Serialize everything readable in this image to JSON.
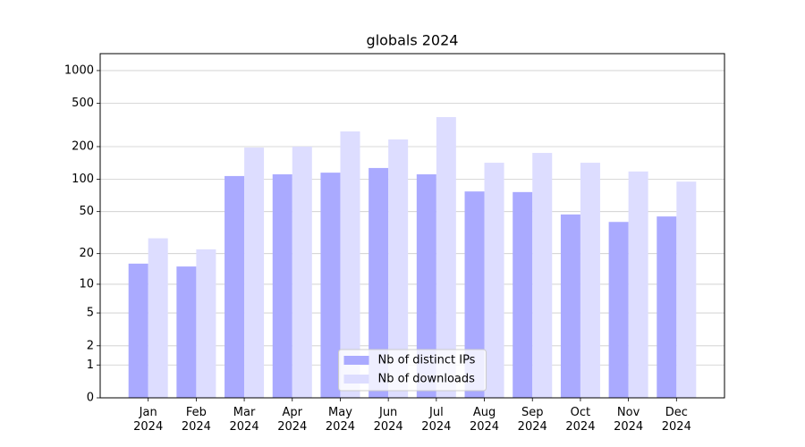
{
  "chart_data": {
    "type": "bar",
    "title": "globals 2024",
    "categories": [
      "Jan\n2024",
      "Feb\n2024",
      "Mar\n2024",
      "Apr\n2024",
      "May\n2024",
      "Jun\n2024",
      "Jul\n2024",
      "Aug\n2024",
      "Sep\n2024",
      "Oct\n2024",
      "Nov\n2024",
      "Dec\n2024"
    ],
    "series": [
      {
        "name": "Nb of distinct IPs",
        "color": "#aaaaff",
        "values": [
          16,
          15,
          107,
          111,
          115,
          127,
          111,
          77,
          76,
          47,
          40,
          45
        ]
      },
      {
        "name": "Nb of downloads",
        "color": "#ddddff",
        "values": [
          28,
          22,
          196,
          200,
          276,
          233,
          374,
          142,
          175,
          142,
          118,
          95
        ]
      }
    ],
    "yscale": "log1p",
    "ylim": [
      0,
      1430
    ],
    "yticks": [
      0,
      1,
      2,
      5,
      10,
      20,
      50,
      100,
      200,
      500,
      1000
    ],
    "grid": true,
    "legend": "lower center"
  }
}
